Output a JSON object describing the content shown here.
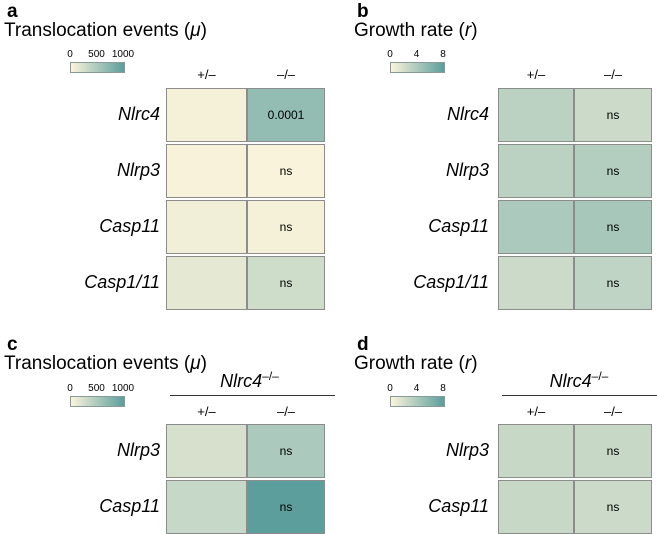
{
  "chart_data": [
    {
      "type": "heatmap",
      "panel": "a",
      "title": "Translocation events (",
      "title_symbol": "μ",
      "title_close": ")",
      "legend": {
        "min": 0,
        "max": 1000,
        "ticks": [
          "0",
          "500",
          "1000"
        ],
        "colors": [
          "#fbf4dc",
          "#5b9e9b"
        ]
      },
      "group_label": "",
      "group_sup": "",
      "columns": [
        "+/–",
        "–/–"
      ],
      "rows": [
        "Nlrc4",
        "Nlrp3",
        "Casp11",
        "Casp1/11"
      ],
      "values": [
        [
          40,
          650
        ],
        [
          20,
          15
        ],
        [
          60,
          40
        ],
        [
          140,
          280
        ]
      ],
      "annotations": [
        [
          "",
          "0.0001"
        ],
        [
          "",
          "ns"
        ],
        [
          "",
          "ns"
        ],
        [
          "",
          "ns"
        ]
      ]
    },
    {
      "type": "heatmap",
      "panel": "b",
      "title": "Growth rate (",
      "title_symbol": "r",
      "title_close": ")",
      "legend": {
        "min": 0,
        "max": 8,
        "ticks": [
          "0",
          "4",
          "8"
        ],
        "colors": [
          "#fbf4dc",
          "#5b9e9b"
        ]
      },
      "group_label": "",
      "group_sup": "",
      "columns": [
        "+/–",
        "–/–"
      ],
      "rows": [
        "Nlrc4",
        "Nlrp3",
        "Casp11",
        "Casp1/11"
      ],
      "values": [
        [
          3.2,
          2.4
        ],
        [
          3.2,
          3.6
        ],
        [
          4.0,
          4.2
        ],
        [
          2.4,
          3.0
        ]
      ],
      "annotations": [
        [
          "",
          "ns"
        ],
        [
          "",
          "ns"
        ],
        [
          "",
          "ns"
        ],
        [
          "",
          "ns"
        ]
      ]
    },
    {
      "type": "heatmap",
      "panel": "c",
      "title": "Translocation events (",
      "title_symbol": "μ",
      "title_close": ")",
      "legend": {
        "min": 0,
        "max": 1000,
        "ticks": [
          "0",
          "500",
          "1000"
        ],
        "colors": [
          "#fbf4dc",
          "#5b9e9b"
        ]
      },
      "group_label": "Nlrc4",
      "group_sup": "–/–",
      "columns": [
        "+/–",
        "–/–"
      ],
      "rows": [
        "Nlrp3",
        "Casp11"
      ],
      "values": [
        [
          230,
          500
        ],
        [
          330,
          1000
        ]
      ],
      "annotations": [
        [
          "",
          "ns"
        ],
        [
          "",
          "ns"
        ]
      ]
    },
    {
      "type": "heatmap",
      "panel": "d",
      "title": "Growth rate (",
      "title_symbol": "r",
      "title_close": ")",
      "legend": {
        "min": 0,
        "max": 8,
        "ticks": [
          "0",
          "4",
          "8"
        ],
        "colors": [
          "#fbf4dc",
          "#5b9e9b"
        ]
      },
      "group_label": "Nlrc4",
      "group_sup": "–/–",
      "columns": [
        "+/–",
        "–/–"
      ],
      "rows": [
        "Nlrp3",
        "Casp11"
      ],
      "values": [
        [
          2.6,
          2.6
        ],
        [
          2.6,
          2.4
        ]
      ],
      "annotations": [
        [
          "",
          "ns"
        ],
        [
          "",
          "ns"
        ]
      ]
    }
  ]
}
